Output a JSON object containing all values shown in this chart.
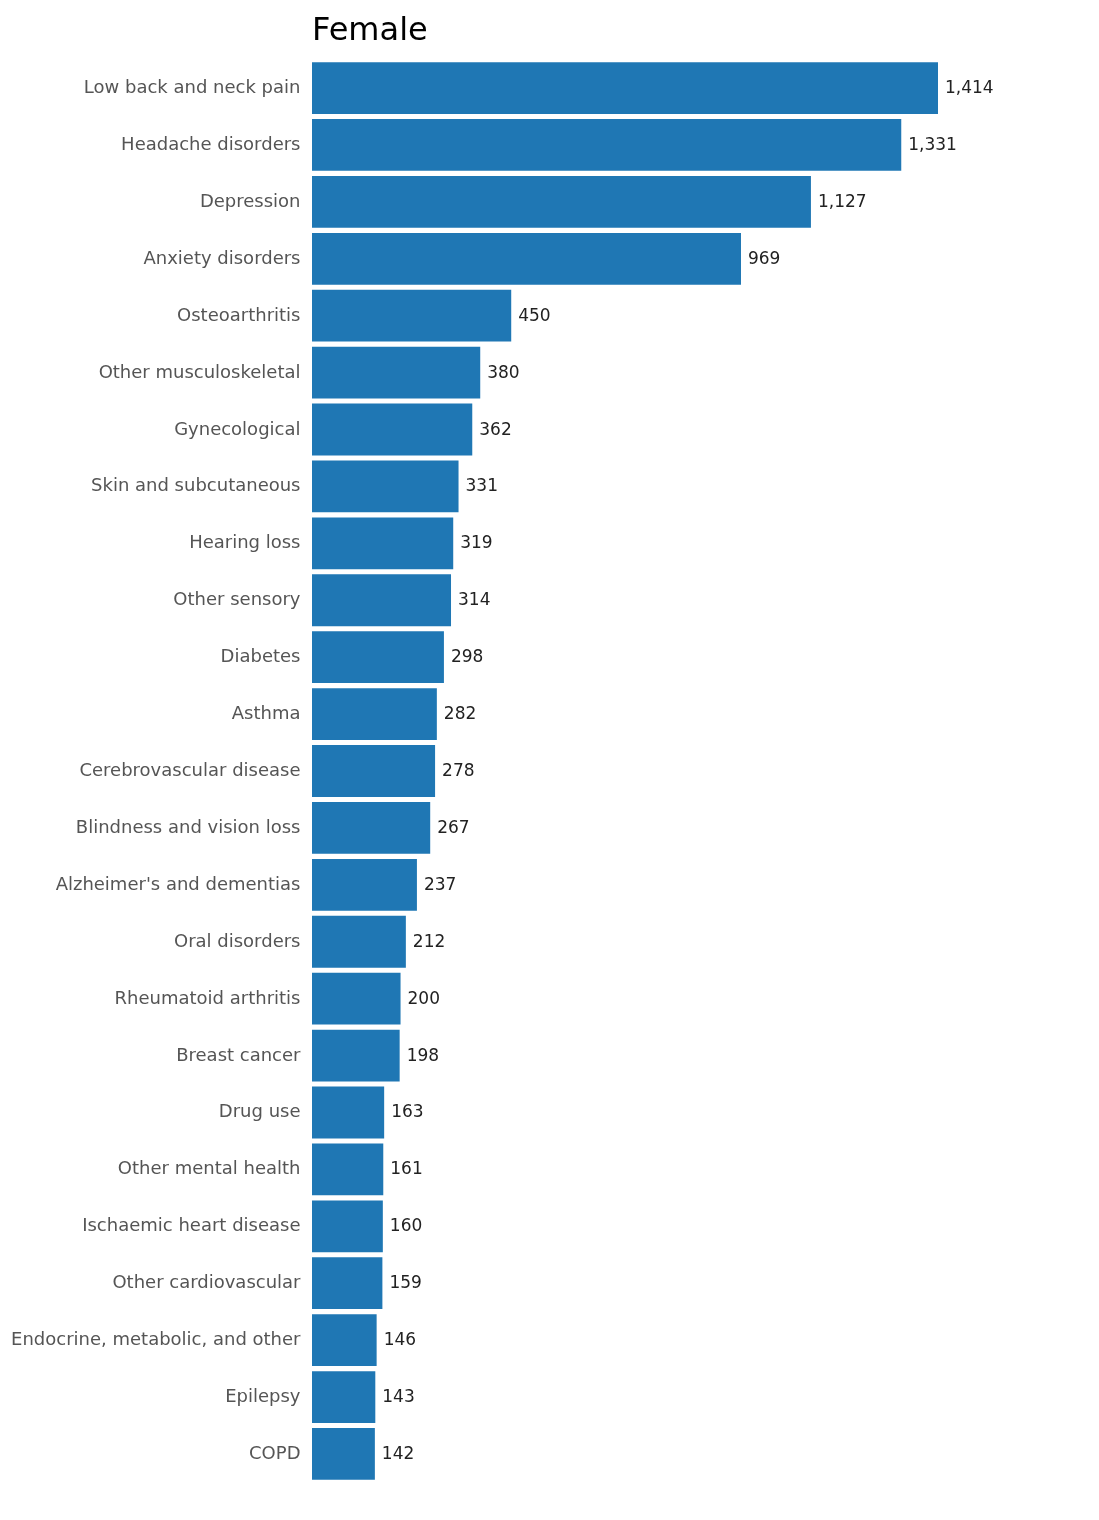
{
  "chart_data": {
    "type": "bar",
    "orientation": "horizontal",
    "title": "Female",
    "color": "#1f77b4",
    "value_labels": [
      "1,414",
      "1,331",
      "1,127",
      "969",
      "450",
      "380",
      "362",
      "331",
      "319",
      "314",
      "298",
      "282",
      "278",
      "267",
      "237",
      "212",
      "200",
      "198",
      "163",
      "161",
      "160",
      "159",
      "146",
      "143",
      "142"
    ],
    "categories": [
      "Low back and neck pain",
      "Headache disorders",
      "Depression",
      "Anxiety disorders",
      "Osteoarthritis",
      "Other musculoskeletal",
      "Gynecological",
      "Skin and subcutaneous",
      "Hearing loss",
      "Other sensory",
      "Diabetes",
      "Asthma",
      "Cerebrovascular disease",
      "Blindness and vision loss",
      "Alzheimer's  and dementias",
      "Oral disorders",
      "Rheumatoid arthritis",
      "Breast cancer",
      "Drug use",
      "Other mental health",
      "Ischaemic heart disease",
      "Other cardiovascular",
      "Endocrine, metabolic, and other",
      "Epilepsy",
      "COPD"
    ],
    "values": [
      1414,
      1331,
      1127,
      969,
      450,
      380,
      362,
      331,
      319,
      314,
      298,
      282,
      278,
      267,
      237,
      212,
      200,
      198,
      163,
      161,
      160,
      159,
      146,
      143,
      142
    ]
  }
}
